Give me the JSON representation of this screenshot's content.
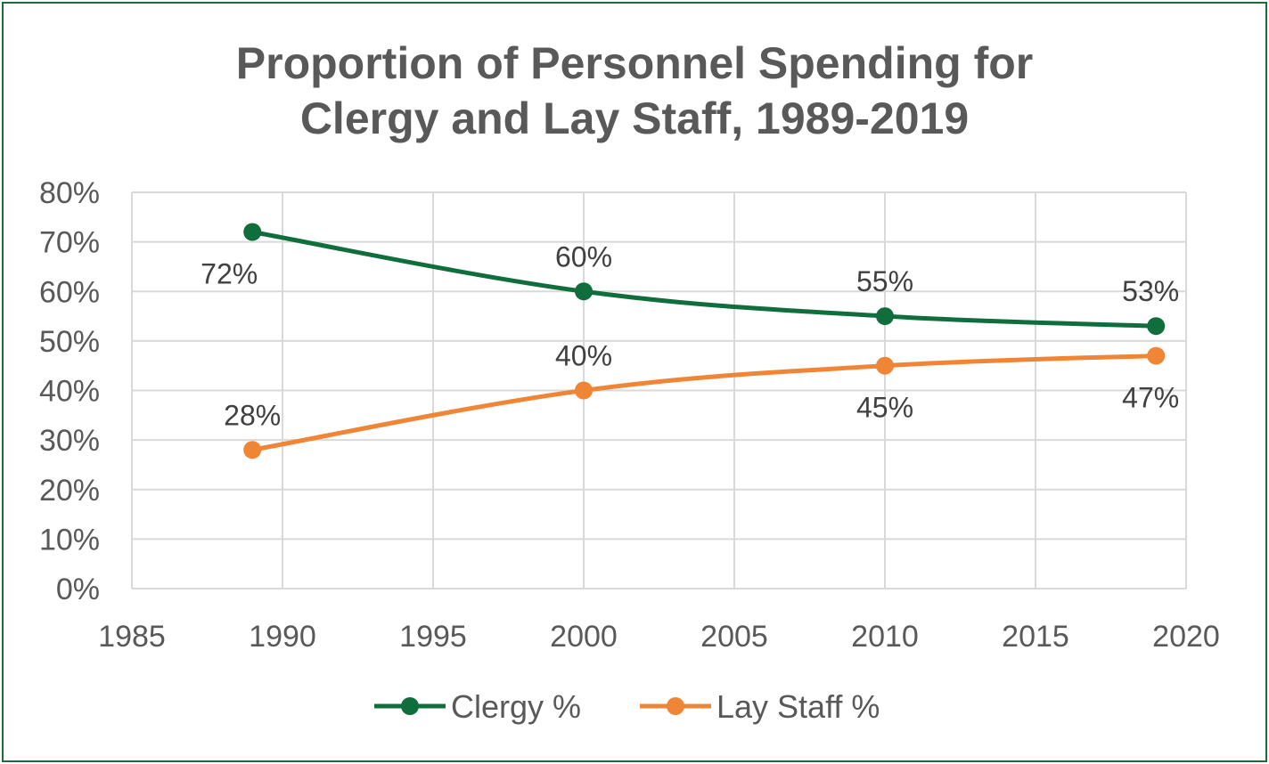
{
  "chart_data": {
    "type": "line",
    "title": [
      "Proportion of Personnel Spending for",
      "Clergy and Lay Staff, 1989-2019"
    ],
    "xlabel": "",
    "ylabel": "",
    "xlim": [
      1985,
      2020
    ],
    "ylim": [
      0,
      80
    ],
    "x_ticks": [
      "1985",
      "1990",
      "1995",
      "2000",
      "2005",
      "2010",
      "2015",
      "2020"
    ],
    "y_ticks": [
      "0%",
      "10%",
      "20%",
      "30%",
      "40%",
      "50%",
      "60%",
      "70%",
      "80%"
    ],
    "grid": true,
    "legend_position": "bottom",
    "series": [
      {
        "name": "Clergy %",
        "color": "#0f6e3c",
        "x": [
          1989,
          2000,
          2010,
          2019
        ],
        "y": [
          72,
          60,
          55,
          53
        ],
        "labels": [
          "72%",
          "60%",
          "55%",
          "53%"
        ],
        "label_position": [
          "below",
          "above",
          "above",
          "above"
        ]
      },
      {
        "name": "Lay Staff %",
        "color": "#ef8535",
        "x": [
          1989,
          2000,
          2010,
          2019
        ],
        "y": [
          28,
          40,
          45,
          47
        ],
        "labels": [
          "28%",
          "40%",
          "45%",
          "47%"
        ],
        "label_position": [
          "above",
          "above",
          "below",
          "below"
        ]
      }
    ]
  }
}
